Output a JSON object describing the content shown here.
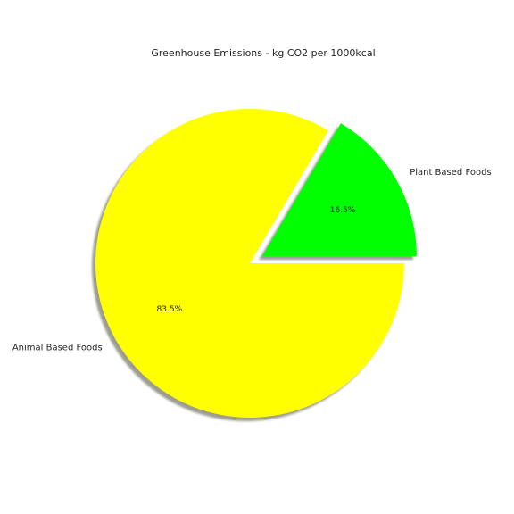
{
  "chart_data": {
    "type": "pie",
    "title": "Greenhouse Emissions - kg CO2 per 1000kcal",
    "slices": [
      {
        "label": "Plant Based Foods",
        "value": 16.5,
        "pct_label": "16.5%",
        "color": "#00ff00",
        "exploded": true
      },
      {
        "label": "Animal Based Foods",
        "value": 83.5,
        "pct_label": "83.5%",
        "color": "#ffff00",
        "exploded": false
      }
    ],
    "start_angle_deg": 0,
    "direction": "counterclockwise",
    "shadow": true,
    "legend": "none"
  }
}
